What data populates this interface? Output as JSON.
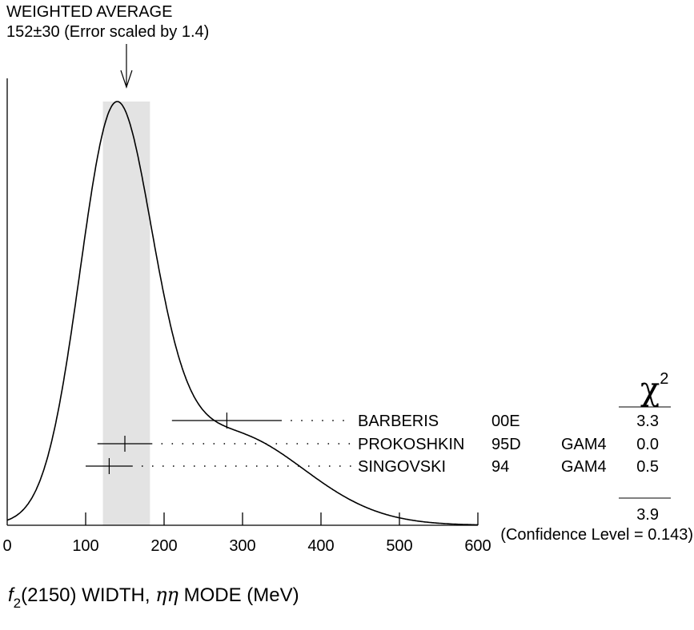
{
  "chart_data": {
    "type": "ideogram",
    "average_label": "WEIGHTED AVERAGE",
    "average_value_text": "152±30 (Error scaled by 1.4)",
    "average": {
      "value": 152,
      "error": 30
    },
    "xlim": [
      0,
      600
    ],
    "xticks": [
      "0",
      "100",
      "200",
      "300",
      "400",
      "500",
      "600"
    ],
    "xlabel": {
      "f": "f",
      "sub": "2",
      "rest": "(2150) WIDTH, ",
      "greek": "ηη",
      "tail": " MODE (MeV)"
    },
    "chi2_header": {
      "symbol": "χ",
      "power": "2"
    },
    "measurements": [
      {
        "author": "BARBERIS",
        "year": "00E",
        "tech": "",
        "value": 280,
        "err_low": 70,
        "err_high": 70,
        "chi2": "3.3"
      },
      {
        "author": "PROKOSHKIN",
        "year": "95D",
        "tech": "GAM4",
        "value": 150,
        "err_low": 35,
        "err_high": 35,
        "chi2": "0.0"
      },
      {
        "author": "SINGOVSKI",
        "year": "94",
        "tech": "GAM4",
        "value": 130,
        "err_low": 30,
        "err_high": 30,
        "chi2": "0.5"
      }
    ],
    "chi2_total": "3.9",
    "confidence_level": "(Confidence Level = 0.143)"
  }
}
